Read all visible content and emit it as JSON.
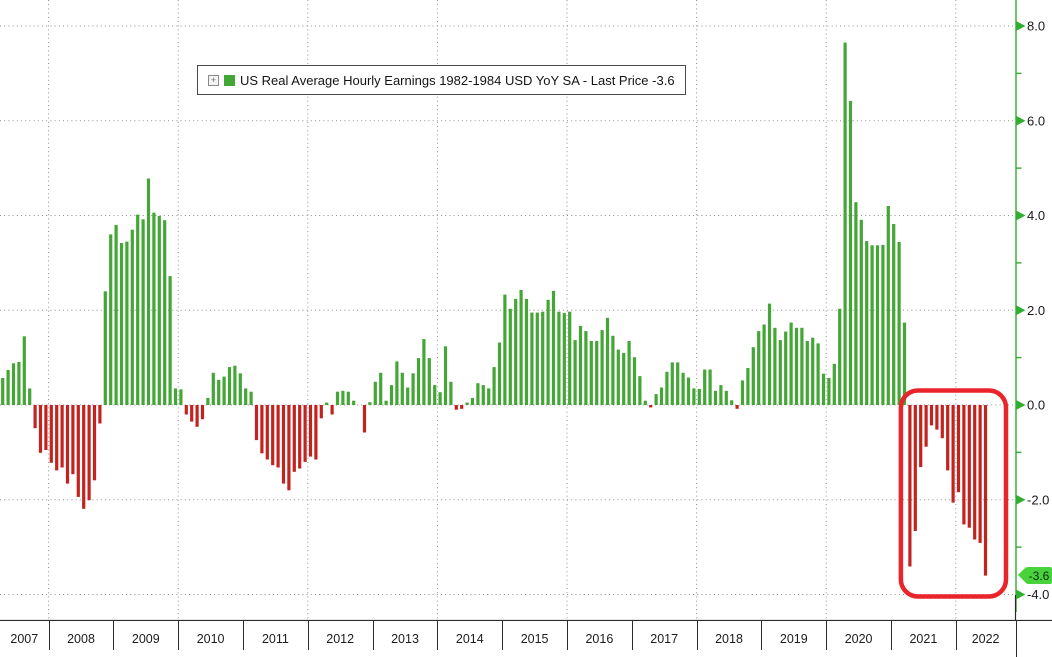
{
  "legend": {
    "expand_icon": "+",
    "label": "US Real Average Hourly Earnings 1982-1984 USD YoY SA - Last Price -3.6"
  },
  "chart_data": {
    "type": "bar",
    "title": "US Real Average Hourly Earnings 1982-1984 USD YoY SA",
    "series_name": "US Real Average Hourly Earnings 1982-1984 USD YoY SA",
    "unit": "% YoY",
    "frequency": "monthly",
    "start": "2007-04",
    "end": "2022-06",
    "last_price": -3.6,
    "last_price_label": "-3.6",
    "values": [
      0.57,
      0.74,
      0.88,
      0.91,
      1.45,
      0.35,
      -0.49,
      -1.01,
      -0.95,
      -1.22,
      -1.38,
      -1.32,
      -1.66,
      -1.46,
      -1.94,
      -2.19,
      -2.01,
      -1.59,
      -0.39,
      2.4,
      3.6,
      3.8,
      3.42,
      3.45,
      3.7,
      4.02,
      3.92,
      4.78,
      4.06,
      3.99,
      3.9,
      2.72,
      0.35,
      0.33,
      -0.2,
      -0.35,
      -0.46,
      -0.3,
      0.15,
      0.68,
      0.53,
      0.6,
      0.8,
      0.83,
      0.67,
      0.35,
      0.28,
      -0.74,
      -1.02,
      -1.15,
      -1.27,
      -1.32,
      -1.66,
      -1.8,
      -1.41,
      -1.34,
      -1.2,
      -1.09,
      -1.15,
      -0.28,
      0.05,
      -0.2,
      0.28,
      0.3,
      0.28,
      0.09,
      0.0,
      -0.58,
      0.06,
      0.49,
      0.68,
      0.09,
      0.42,
      0.92,
      0.68,
      0.37,
      0.67,
      0.99,
      1.39,
      0.99,
      0.42,
      0.27,
      1.24,
      0.49,
      -0.1,
      -0.08,
      0.05,
      0.15,
      0.46,
      0.42,
      0.35,
      0.8,
      1.32,
      2.33,
      2.03,
      2.24,
      2.43,
      2.24,
      1.95,
      1.95,
      1.97,
      2.22,
      2.41,
      1.97,
      1.94,
      1.97,
      1.37,
      1.67,
      1.56,
      1.35,
      1.35,
      1.58,
      1.84,
      1.46,
      1.17,
      1.1,
      1.35,
      1.01,
      0.61,
      0.09,
      -0.05,
      0.23,
      0.37,
      0.7,
      0.9,
      0.9,
      0.68,
      0.58,
      0.35,
      0.34,
      0.75,
      0.75,
      0.3,
      0.42,
      0.3,
      0.1,
      -0.08,
      0.52,
      0.78,
      1.22,
      1.56,
      1.7,
      2.14,
      1.63,
      1.37,
      1.55,
      1.74,
      1.63,
      1.63,
      1.35,
      1.42,
      1.3,
      0.66,
      0.57,
      0.87,
      2.03,
      7.65,
      6.42,
      4.28,
      3.91,
      3.46,
      3.37,
      3.37,
      3.38,
      4.2,
      3.82,
      3.44,
      1.74,
      -3.41,
      -2.66,
      -1.31,
      -0.88,
      -0.43,
      -0.52,
      -0.7,
      -1.38,
      -2.06,
      -1.84,
      -2.52,
      -2.59,
      -2.84,
      -2.91,
      -3.6
    ],
    "y_axis": {
      "major_ticks": [
        8,
        6,
        4,
        2,
        0,
        -2,
        -4
      ],
      "major_tick_labels": [
        "8.0",
        "6.0",
        "4.0",
        "2.0",
        "0.0",
        "-2.0",
        "-4.0"
      ],
      "minor_ticks": [
        7,
        5,
        3,
        1,
        -1,
        -3
      ],
      "ylim": [
        -4.35,
        8.55
      ],
      "side": "right"
    },
    "x_axis": {
      "years": [
        2007,
        2008,
        2009,
        2010,
        2011,
        2012,
        2013,
        2014,
        2015,
        2016,
        2017,
        2018,
        2019,
        2020,
        2021,
        2022
      ],
      "gridline_years": [
        2008,
        2010,
        2012,
        2014,
        2016,
        2018,
        2020,
        2022
      ]
    },
    "highlight": {
      "description": "red rounded box around the streak of negative prints",
      "start": "2021-04",
      "start_index": 168,
      "end": "2022-06",
      "end_index": 182
    },
    "grid": true,
    "legend_position": "top-left",
    "colors": {
      "bar_positive": "#44a636",
      "bar_negative": "#c3231f",
      "axis_green": "#2fae2f",
      "badge_green": "#48d33c",
      "highlight_red": "#e9252b",
      "grid_gray": "#8f8f8f",
      "text": "#1a1a1a"
    }
  }
}
